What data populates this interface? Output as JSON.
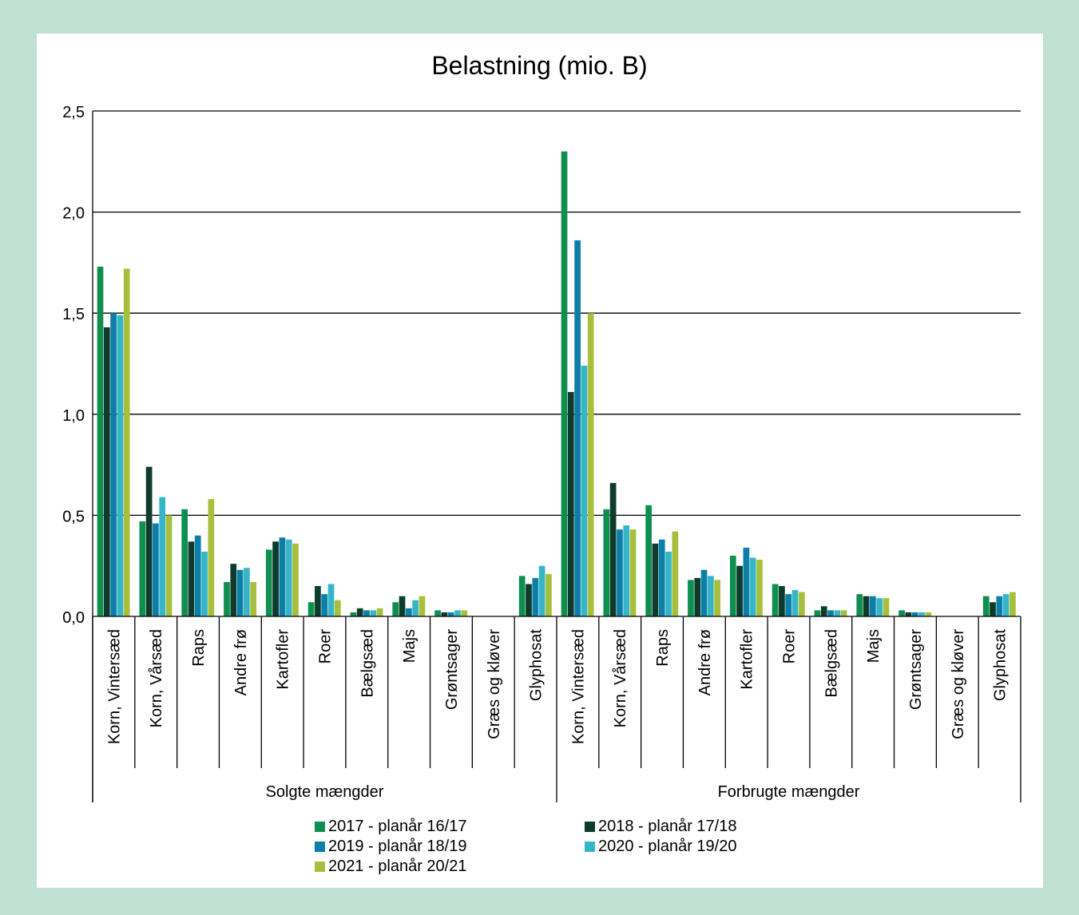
{
  "colors": {
    "frame": "#bfe0d2",
    "series": [
      "#0e8f4f",
      "#0d3b2c",
      "#0c7fa8",
      "#36b5c8",
      "#a6bf3c"
    ]
  },
  "chart_data": {
    "type": "bar",
    "title": "Belastning (mio. B)",
    "xlabel": "",
    "ylabel": "",
    "ylim": [
      0,
      2.5
    ],
    "yticks": [
      "0,0",
      "0,5",
      "1,0",
      "1,5",
      "2,0",
      "2,5"
    ],
    "ytick_values": [
      0,
      0.5,
      1.0,
      1.5,
      2.0,
      2.5
    ],
    "grid": true,
    "legend_position": "bottom",
    "groups": [
      "Solgte mængder",
      "Forbrugte mængder"
    ],
    "categories": [
      "Korn, Vintersæd",
      "Korn, Vårsæd",
      "Raps",
      "Andre frø",
      "Kartofler",
      "Roer",
      "Bælgsæd",
      "Majs",
      "Grøntsager",
      "Græs og kløver",
      "Glyphosat"
    ],
    "series": [
      {
        "name": "2017 - planår 16/17",
        "values": {
          "Solgte mængder": [
            1.73,
            0.47,
            0.53,
            0.17,
            0.33,
            0.07,
            0.02,
            0.07,
            0.03,
            0.0,
            0.2
          ],
          "Forbrugte mængder": [
            2.3,
            0.53,
            0.55,
            0.18,
            0.3,
            0.16,
            0.03,
            0.11,
            0.03,
            0.0,
            0.1
          ]
        }
      },
      {
        "name": "2018 - planår 17/18",
        "values": {
          "Solgte mængder": [
            1.43,
            0.74,
            0.37,
            0.26,
            0.37,
            0.15,
            0.04,
            0.1,
            0.02,
            0.0,
            0.16
          ],
          "Forbrugte mængder": [
            1.11,
            0.66,
            0.36,
            0.19,
            0.25,
            0.15,
            0.05,
            0.1,
            0.02,
            0.0,
            0.07
          ]
        }
      },
      {
        "name": "2019 - planår 18/19",
        "values": {
          "Solgte mængder": [
            1.5,
            0.46,
            0.4,
            0.23,
            0.39,
            0.11,
            0.03,
            0.04,
            0.02,
            0.0,
            0.19
          ],
          "Forbrugte mængder": [
            1.86,
            0.43,
            0.38,
            0.23,
            0.34,
            0.11,
            0.03,
            0.1,
            0.02,
            0.0,
            0.1
          ]
        }
      },
      {
        "name": "2020 - planår 19/20",
        "values": {
          "Solgte mængder": [
            1.49,
            0.59,
            0.32,
            0.24,
            0.38,
            0.16,
            0.03,
            0.08,
            0.03,
            0.0,
            0.25
          ],
          "Forbrugte mængder": [
            1.24,
            0.45,
            0.32,
            0.2,
            0.29,
            0.13,
            0.03,
            0.09,
            0.02,
            0.0,
            0.11
          ]
        }
      },
      {
        "name": "2021 - planår 20/21",
        "values": {
          "Solgte mængder": [
            1.72,
            0.5,
            0.58,
            0.17,
            0.36,
            0.08,
            0.04,
            0.1,
            0.03,
            0.0,
            0.21
          ],
          "Forbrugte mængder": [
            1.5,
            0.43,
            0.42,
            0.18,
            0.28,
            0.12,
            0.03,
            0.09,
            0.02,
            0.0,
            0.12
          ]
        }
      }
    ]
  }
}
